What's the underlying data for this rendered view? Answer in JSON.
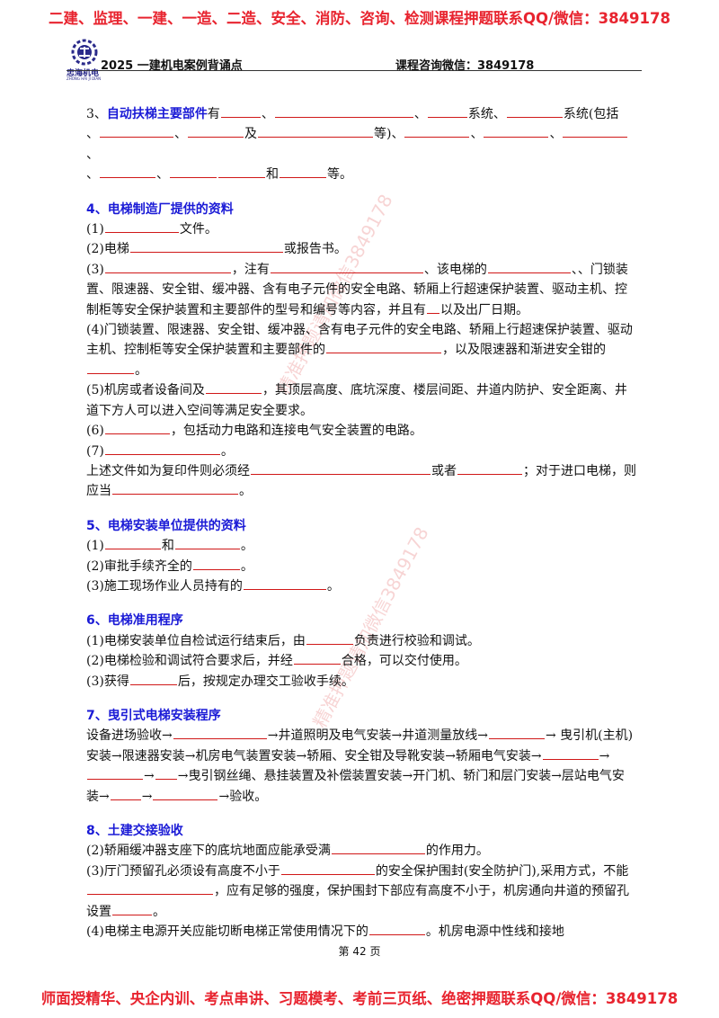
{
  "banner_top": "二建、监理、一建、一造、二造、安全、消防、咨询、检测课程押题联系QQ/微信：3849178",
  "banner_bottom": "师面授精华、央企内训、考点串讲、习题模考、考前三页纸、绝密押题联系QQ/微信：3849178",
  "logo": {
    "name": "忠海机电",
    "sub": "ZHONG HAI JI DIAN",
    "icon": "gear-logo-icon",
    "color": "#2a2a8a"
  },
  "header": {
    "left": "2025 一建机电案例背诵点",
    "right": "课程咨询微信：3849178"
  },
  "watermark": "精准押题请加微信3849178",
  "accent_color": "#1a1ad6",
  "blank_color": "#d01818",
  "s3": {
    "num": "3、",
    "title": "自动扶梯主要部件",
    "t1": "有",
    "t2": "、",
    "t3": "、",
    "t4": "系统、",
    "t5": "系统(包括",
    "t6": "、",
    "t7": "、",
    "t8": "及",
    "t9": "等)、",
    "t10": "、",
    "t11": "、",
    "t12": "、",
    "t13": "、",
    "t14": "、",
    "t15": "和",
    "t16": "等。"
  },
  "s4": {
    "title": "4、电梯制造厂提供的资料",
    "l1a": "(1)",
    "l1b": "文件。",
    "l2a": "(2)电梯",
    "l2b": "或报告书。",
    "l3a": "(3)",
    "l3b": "，注有",
    "l3c": "、该电梯的",
    "l3d": "、",
    "l3e": "、门锁装置、限速器、安全钳、缓冲器、含有电子元件的安全电路、轿厢上行超速保护装置、驱动主机、控制柜等安全保护装置和主要部件的型号和编号等内容，并且有",
    "l3f": "以及出厂日期。",
    "l4a": "(4)门锁装置、限速器、安全钳、缓冲器、含有电子元件的安全电路、轿厢上行超速保护装置、驱动主机、控制柜等安全保护装置和主要部件的",
    "l4b": "，以及限速器和渐进安全钳的",
    "l4c": "。",
    "l5a": "(5)机房或者设备间及",
    "l5b": "，其顶层高度、底坑深度、楼层间距、井道内防护、安全距离、井道下方人可以进入空间等满足安全要求。",
    "l6a": "(6)",
    "l6b": "，包括动力电路和连接电气安全装置的电路。",
    "l7a": "(7)",
    "l7b": "。",
    "l8a": "上述文件如为复印件则必须经",
    "l8b": "或者",
    "l8c": "；对于进口电梯，则应当",
    "l8d": "。"
  },
  "s5": {
    "title": "5、电梯安装单位提供的资料",
    "l1a": "(1)",
    "l1b": "和",
    "l1c": "。",
    "l2a": "(2)审批手续齐全的",
    "l2b": "。",
    "l3a": "(3)施工现场作业人员持有的",
    "l3b": "。"
  },
  "s6": {
    "title": "6、电梯准用程序",
    "l1a": "(1)电梯安装单位自检试运行结束后，由",
    "l1b": "负责进行校验和调试。",
    "l2a": "(2)电梯检验和调试符合要求后，并经",
    "l2b": "合格，可以交付使用。",
    "l3a": "(3)获得",
    "l3b": "后，按规定办理交工验收手续。"
  },
  "s7": {
    "title": "7、曳引式电梯安装程序",
    "a": "设备进场验收→",
    "b": "→井道照明及电气安装→井道测量放线→",
    "c": "→ 曳引机(主机)安装→限速器安装→机房电气装置安装→轿厢、安全钳及导靴安装→轿厢电气安装→",
    "d": "→",
    "e": "→",
    "f": "→曳引钢丝绳、悬挂装置及补偿装置安装→开门机、轿门和层门安装→层站电气安装→",
    "g": "→",
    "h": "→验收。"
  },
  "s8": {
    "title": "8、土建交接验收",
    "l2a": "(2)轿厢缓冲器支座下的底坑地面应能承受满",
    "l2b": "的作用力。",
    "l3a": "(3)厅门预留孔必须设有高度不小于",
    "l3b": "的安全保护围封(安全防护门),采用方式，不能",
    "l3c": "，应有足够的强度，保护围封下部应有高度不小于，机房通向井道的预留孔设置",
    "l3d": "。",
    "l4a": "(4)电梯主电源开关应能切断电梯正常使用情况下的",
    "l4b": "。机房电源中性线和接地"
  },
  "footer": "第 42 页"
}
